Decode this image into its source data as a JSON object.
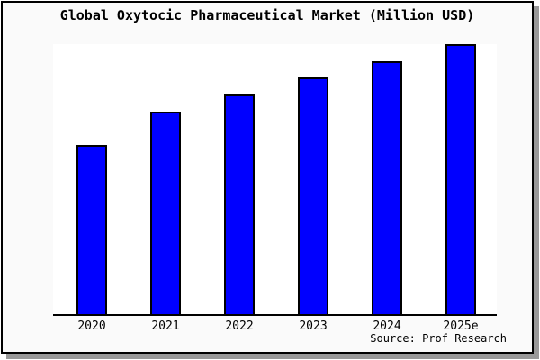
{
  "chart": {
    "title": "Global Oxytocic Pharmaceutical Market (Million USD)",
    "source_label": "Source: Prof Research"
  },
  "colors": {
    "bar": "#0000ff",
    "bar_border": "#000000",
    "card_background": "#fafafa",
    "plot_background": "#ffffff",
    "frame_border": "#000000",
    "shadow": "#999999"
  },
  "chart_data": {
    "type": "bar",
    "title": "Global Oxytocic Pharmaceutical Market (Million USD)",
    "categories": [
      "2020",
      "2021",
      "2022",
      "2023",
      "2024",
      "2025e"
    ],
    "values": [
      62.5,
      75,
      81.5,
      87.5,
      93.5,
      100
    ],
    "value_scale": "relative units; y-axis is not drawn or labeled, values estimated from bar heights normalized to 2025e = 100",
    "xlabel": "",
    "ylabel": "",
    "ylim": [
      0,
      100
    ],
    "grid": false,
    "legend": false,
    "y_axis_shown": false,
    "source": "Source: Prof Research"
  }
}
